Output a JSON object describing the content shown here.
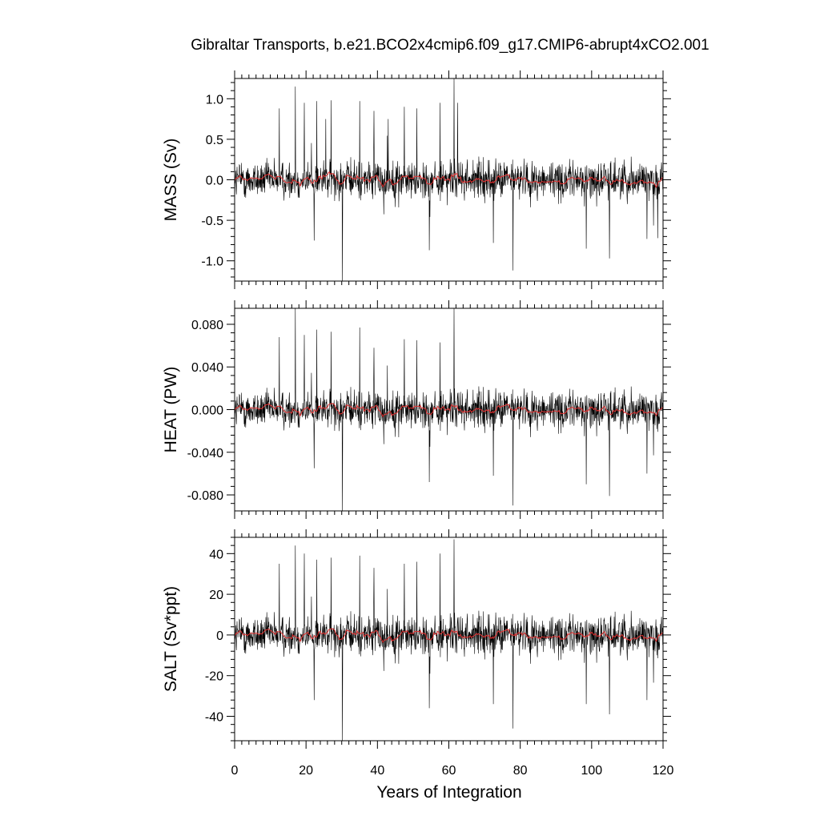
{
  "chart_data": {
    "type": "line",
    "title": "Gibraltar Transports, b.e21.BCO2x4cmip6.f09_g17.CMIP6-abrupt4xCO2.001",
    "xlabel": "Years of Integration",
    "xlim": [
      0,
      120
    ],
    "x_ticks": [
      "0",
      "20",
      "40",
      "60",
      "80",
      "100",
      "120"
    ],
    "panels": [
      {
        "ylabel": "MASS (Sv)",
        "ylim": [
          -1.25,
          1.25
        ],
        "y_ticks": [
          -1.0,
          -0.5,
          0.0,
          0.5,
          1.0
        ],
        "y_tick_labels": [
          "-1.0",
          "-0.5",
          "0.0",
          "0.5",
          "1.0"
        ],
        "spikes": [
          {
            "x": 12.5,
            "y": 0.88
          },
          {
            "x": 17.0,
            "y": 1.15
          },
          {
            "x": 19.5,
            "y": 0.95
          },
          {
            "x": 23.0,
            "y": 0.97
          },
          {
            "x": 25.5,
            "y": 0.75
          },
          {
            "x": 27.0,
            "y": 0.98
          },
          {
            "x": 30.2,
            "y": -1.25
          },
          {
            "x": 22.3,
            "y": -0.75
          },
          {
            "x": 35.0,
            "y": 0.97
          },
          {
            "x": 39.0,
            "y": 0.85
          },
          {
            "x": 43.0,
            "y": 0.75
          },
          {
            "x": 47.5,
            "y": 0.9
          },
          {
            "x": 51.0,
            "y": 0.88
          },
          {
            "x": 54.5,
            "y": -0.87
          },
          {
            "x": 57.5,
            "y": 0.95
          },
          {
            "x": 61.5,
            "y": 1.25
          },
          {
            "x": 62.5,
            "y": 0.95
          },
          {
            "x": 72.5,
            "y": -0.78
          },
          {
            "x": 78.0,
            "y": -1.12
          },
          {
            "x": 98.5,
            "y": -0.85
          },
          {
            "x": 105.0,
            "y": -0.97
          },
          {
            "x": 115.5,
            "y": -0.73
          },
          {
            "x": 118.5,
            "y": -0.72
          }
        ]
      },
      {
        "ylabel": "HEAT (PW)",
        "ylim": [
          -0.095,
          0.095
        ],
        "y_ticks": [
          -0.08,
          -0.04,
          0.0,
          0.04,
          0.08
        ],
        "y_tick_labels": [
          "-0.080",
          "-0.040",
          "0.000",
          "0.040",
          "0.080"
        ],
        "spikes": [
          {
            "x": 12.5,
            "y": 0.068
          },
          {
            "x": 17.0,
            "y": 0.095
          },
          {
            "x": 19.5,
            "y": 0.07
          },
          {
            "x": 23.0,
            "y": 0.075
          },
          {
            "x": 27.0,
            "y": 0.073
          },
          {
            "x": 30.2,
            "y": -0.095
          },
          {
            "x": 22.3,
            "y": -0.055
          },
          {
            "x": 35.0,
            "y": 0.077
          },
          {
            "x": 39.0,
            "y": 0.058
          },
          {
            "x": 47.5,
            "y": 0.066
          },
          {
            "x": 51.0,
            "y": 0.065
          },
          {
            "x": 54.5,
            "y": -0.068
          },
          {
            "x": 57.5,
            "y": 0.063
          },
          {
            "x": 61.5,
            "y": 0.095
          },
          {
            "x": 72.5,
            "y": -0.062
          },
          {
            "x": 78.0,
            "y": -0.09
          },
          {
            "x": 98.5,
            "y": -0.07
          },
          {
            "x": 105.0,
            "y": -0.081
          },
          {
            "x": 115.5,
            "y": -0.06
          }
        ]
      },
      {
        "ylabel": "SALT (Sv*ppt)",
        "ylim": [
          -52,
          48
        ],
        "y_ticks": [
          -40,
          -20,
          0,
          20,
          40
        ],
        "y_tick_labels": [
          "-40",
          "-20",
          "0",
          "20",
          "40"
        ],
        "spikes": [
          {
            "x": 12.5,
            "y": 35
          },
          {
            "x": 17.0,
            "y": 44
          },
          {
            "x": 19.5,
            "y": 40
          },
          {
            "x": 23.0,
            "y": 37
          },
          {
            "x": 27.0,
            "y": 38
          },
          {
            "x": 30.2,
            "y": -52
          },
          {
            "x": 22.3,
            "y": -32
          },
          {
            "x": 35.0,
            "y": 39
          },
          {
            "x": 39.0,
            "y": 33
          },
          {
            "x": 47.5,
            "y": 35
          },
          {
            "x": 51.0,
            "y": 36
          },
          {
            "x": 54.5,
            "y": -36
          },
          {
            "x": 57.5,
            "y": 40
          },
          {
            "x": 61.5,
            "y": 47
          },
          {
            "x": 72.5,
            "y": -34
          },
          {
            "x": 78.0,
            "y": -46
          },
          {
            "x": 98.5,
            "y": -34
          },
          {
            "x": 105.0,
            "y": -39
          },
          {
            "x": 115.5,
            "y": -32
          }
        ]
      }
    ],
    "colors": {
      "raw_series": "#000000",
      "smoothed_series": "#e03030"
    },
    "grid": false
  }
}
